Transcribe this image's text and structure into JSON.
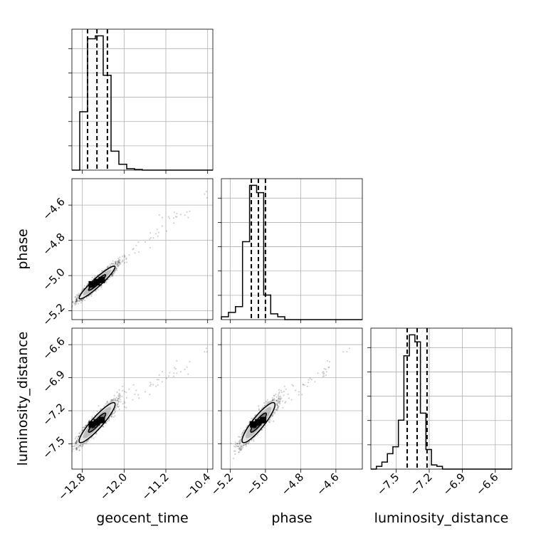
{
  "chart_data": {
    "type": "corner",
    "parameters": [
      "geocent_time",
      "phase",
      "luminosity_distance"
    ],
    "axes": {
      "geocent_time": {
        "label": "geocent_time",
        "lim": [
          -13.0,
          -10.3
        ],
        "ticks": [
          -12.8,
          -12.0,
          -11.2,
          -10.4
        ],
        "tick_labels": [
          "−12.8",
          "−12.0",
          "−11.2",
          "−10.4"
        ],
        "quantiles": [
          -12.7,
          -12.52,
          -12.32
        ]
      },
      "phase": {
        "label": "phase",
        "lim": [
          -5.25,
          -4.45
        ],
        "ticks": [
          -5.2,
          -5.0,
          -4.8,
          -4.6
        ],
        "tick_labels": [
          "−5.2",
          "−5.0",
          "−4.8",
          "−4.6"
        ],
        "quantiles": [
          -5.08,
          -5.04,
          -5.0
        ]
      },
      "luminosity_distance": {
        "label": "luminosity_distance",
        "lim": [
          -7.73,
          -6.45
        ],
        "ticks": [
          -7.5,
          -7.2,
          -6.9,
          -6.6
        ],
        "tick_labels": [
          "−7.5",
          "−7.2",
          "−6.9",
          "−6.6"
        ],
        "quantiles": [
          -7.4,
          -7.31,
          -7.22
        ]
      }
    },
    "histograms": {
      "geocent_time": {
        "edges": [
          -13.0,
          -12.85,
          -12.7,
          -12.55,
          -12.4,
          -12.25,
          -12.1,
          -11.95,
          -11.8,
          -11.65,
          -11.5
        ],
        "counts": [
          0.0,
          0.4,
          0.9,
          0.92,
          0.65,
          0.13,
          0.04,
          0.01,
          0.004,
          0.0
        ]
      },
      "phase": {
        "edges": [
          -5.25,
          -5.21,
          -5.17,
          -5.13,
          -5.09,
          -5.05,
          -5.01,
          -4.97,
          -4.93,
          -4.89,
          -4.85
        ],
        "counts": [
          0.02,
          0.05,
          0.09,
          0.54,
          0.93,
          0.88,
          0.17,
          0.04,
          0.02,
          0.0
        ]
      },
      "luminosity_distance": {
        "edges": [
          -7.73,
          -7.68,
          -7.63,
          -7.58,
          -7.53,
          -7.48,
          -7.43,
          -7.38,
          -7.33,
          -7.28,
          -7.23,
          -7.18,
          -7.13,
          -7.08,
          -7.03,
          -6.98,
          -6.93
        ],
        "counts": [
          0.0,
          0.02,
          0.05,
          0.11,
          0.16,
          0.35,
          0.81,
          0.96,
          0.91,
          0.4,
          0.14,
          0.03,
          0.02,
          0.0,
          0.0,
          0.0
        ]
      }
    },
    "grid": true,
    "levels": [
      0.39,
      0.86
    ]
  }
}
